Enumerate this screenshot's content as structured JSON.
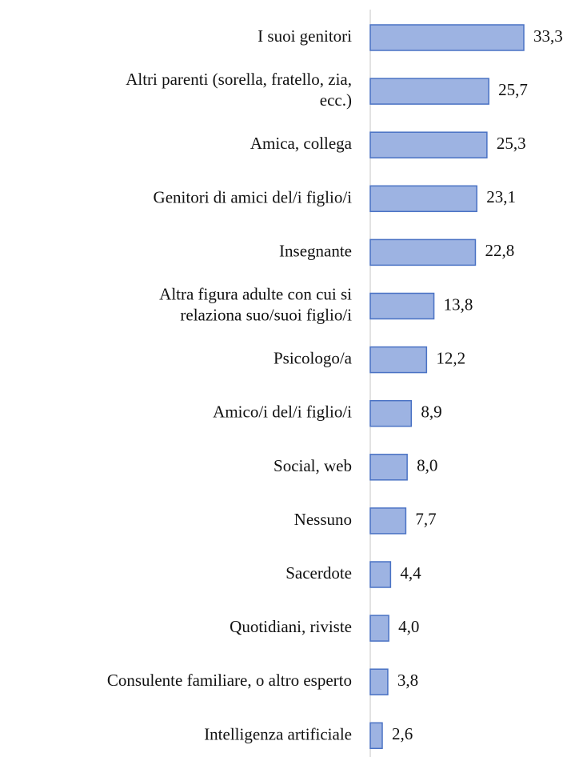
{
  "chart_data": {
    "type": "bar",
    "orientation": "horizontal",
    "categories": [
      "I suoi genitori",
      "Altri parenti (sorella, fratello, zia,\necc.)",
      "Amica, collega",
      "Genitori di amici del/i figlio/i",
      "Insegnante",
      "Altra figura adulte con cui si\nrelaziona suo/suoi figlio/i",
      "Psicologo/a",
      "Amico/i del/i figlio/i",
      "Social, web",
      "Nessuno",
      "Sacerdote",
      "Quotidiani, riviste",
      "Consulente familiare, o altro esperto",
      "Intelligenza artificiale"
    ],
    "values": [
      33.3,
      25.7,
      25.3,
      23.1,
      22.8,
      13.8,
      12.2,
      8.9,
      8.0,
      7.7,
      4.4,
      4.0,
      3.8,
      2.6
    ],
    "value_labels": [
      "33,3",
      "25,7",
      "25,3",
      "23,1",
      "22,8",
      "13,8",
      "12,2",
      "8,9",
      "8,0",
      "7,7",
      "4,4",
      "4,0",
      "3,8",
      "2,6"
    ],
    "color": "#9db3e2",
    "edge_color": "#4a72c4"
  }
}
